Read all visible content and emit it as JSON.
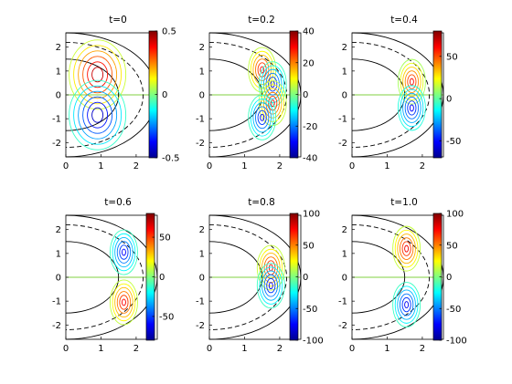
{
  "chart_data": [
    {
      "type": "contour",
      "title": "t=0",
      "xlim": [
        0,
        2.6
      ],
      "ylim": [
        -2.6,
        2.6
      ],
      "xticks": [
        "0",
        "1",
        "2"
      ],
      "yticks": [
        "2",
        "1",
        "0",
        "-1",
        "-2"
      ],
      "colorbar": {
        "range": [
          -0.5,
          0.5
        ],
        "ticks": [
          "0.5",
          "0",
          "-0.5"
        ]
      },
      "extrema": [
        {
          "x": 0.9,
          "y": 0.85,
          "value": 0.5
        },
        {
          "x": 0.9,
          "y": -0.85,
          "value": -0.5
        }
      ]
    },
    {
      "type": "contour",
      "title": "t=0.2",
      "xlim": [
        0,
        2.6
      ],
      "ylim": [
        -2.6,
        2.6
      ],
      "xticks": [
        "0",
        "1",
        "2"
      ],
      "yticks": [
        "2",
        "1",
        "0",
        "-1",
        "-2"
      ],
      "colorbar": {
        "range": [
          -40,
          40
        ],
        "ticks": [
          "40",
          "20",
          "0",
          "-20",
          "-40"
        ]
      },
      "extrema": [
        {
          "x": 1.5,
          "y": 1.05,
          "value": 35
        },
        {
          "x": 1.8,
          "y": 0.45,
          "value": -35
        },
        {
          "x": 1.8,
          "y": -0.35,
          "value": 35
        },
        {
          "x": 1.5,
          "y": -0.95,
          "value": -35
        }
      ]
    },
    {
      "type": "contour",
      "title": "t=0.4",
      "xlim": [
        0,
        2.6
      ],
      "ylim": [
        -2.6,
        2.6
      ],
      "xticks": [
        "0",
        "1",
        "2"
      ],
      "yticks": [
        "2",
        "1",
        "0",
        "-1",
        "-2"
      ],
      "colorbar": {
        "range": [
          -70,
          80
        ],
        "ticks": [
          "50",
          "0",
          "-50"
        ]
      },
      "extrema": [
        {
          "x": 1.7,
          "y": 0.55,
          "value": 70
        },
        {
          "x": 1.7,
          "y": -0.55,
          "value": -60
        }
      ]
    },
    {
      "type": "contour",
      "title": "t=0.6",
      "xlim": [
        0,
        2.6
      ],
      "ylim": [
        -2.6,
        2.6
      ],
      "xticks": [
        "0",
        "1",
        "2"
      ],
      "yticks": [
        "2",
        "1",
        "0",
        "-1",
        "-2"
      ],
      "colorbar": {
        "range": [
          -80,
          80
        ],
        "ticks": [
          "50",
          "0",
          "-50"
        ]
      },
      "extrema": [
        {
          "x": 1.65,
          "y": 1.05,
          "value": -70
        },
        {
          "x": 1.65,
          "y": -1.05,
          "value": 70
        }
      ]
    },
    {
      "type": "contour",
      "title": "t=0.8",
      "xlim": [
        0,
        2.6
      ],
      "ylim": [
        -2.6,
        2.6
      ],
      "xticks": [
        "0",
        "1",
        "2"
      ],
      "yticks": [
        "2",
        "1",
        "0",
        "-1",
        "-2"
      ],
      "colorbar": {
        "range": [
          -100,
          100
        ],
        "ticks": [
          "100",
          "50",
          "0",
          "-50",
          "-100"
        ]
      },
      "extrema": [
        {
          "x": 1.75,
          "y": 0.4,
          "value": 90
        },
        {
          "x": 1.75,
          "y": -0.35,
          "value": -90
        }
      ]
    },
    {
      "type": "contour",
      "title": "t=1.0",
      "xlim": [
        0,
        2.6
      ],
      "ylim": [
        -2.6,
        2.6
      ],
      "xticks": [
        "0",
        "1",
        "2"
      ],
      "yticks": [
        "2",
        "1",
        "0",
        "-1",
        "-2"
      ],
      "colorbar": {
        "range": [
          -100,
          100
        ],
        "ticks": [
          "100",
          "50",
          "0",
          "-50",
          "-100"
        ]
      },
      "extrema": [
        {
          "x": 1.55,
          "y": 1.2,
          "value": 90
        },
        {
          "x": 1.55,
          "y": -1.15,
          "value": -90
        }
      ]
    }
  ],
  "colormap": "jet",
  "colors": {
    "ring": "#000000",
    "dashed_ring": "#000000",
    "axis_zero": "#80d040"
  }
}
